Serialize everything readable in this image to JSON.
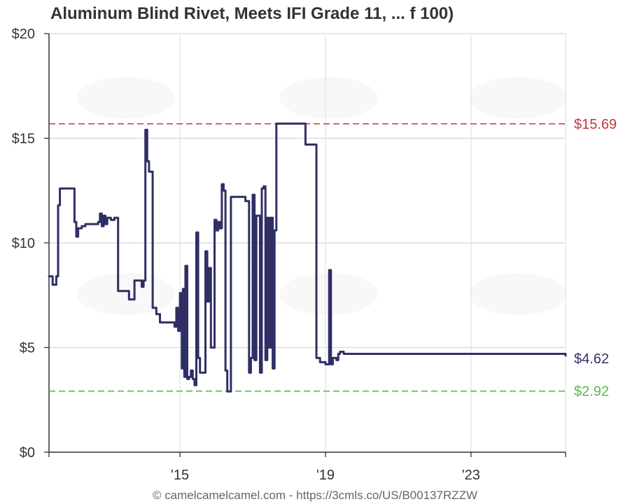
{
  "chart_data": {
    "type": "line",
    "title": "Aluminum Blind Rivet, Meets IFI Grade 11, ... f 100)",
    "footer": "© camelcamelcamel.com - https://3cmls.co/US/B00137RZZW",
    "y_ticks": [
      "$0",
      "$5",
      "$10",
      "$15",
      "$20"
    ],
    "y_tick_values": [
      0,
      5,
      10,
      15,
      20
    ],
    "x_ticks": [
      "'15",
      "'19",
      "'23"
    ],
    "x_tick_values": [
      2015.0,
      2019.0,
      2023.0
    ],
    "xlim": [
      2011.4,
      2025.6
    ],
    "ylim": [
      0,
      20
    ],
    "grid": true,
    "reference_lines": [
      {
        "label": "$15.69",
        "value": 15.69,
        "color": "#c0393b",
        "style": "dashed"
      },
      {
        "label": "$2.92",
        "value": 2.92,
        "color": "#59b84d",
        "style": "dashed"
      }
    ],
    "current_label": {
      "label": "$4.62",
      "value": 4.62,
      "color": "#2f2f66"
    },
    "series": [
      {
        "color": "#2f2f66",
        "points": [
          [
            2011.4,
            8.4
          ],
          [
            2011.5,
            8.0
          ],
          [
            2011.6,
            8.4
          ],
          [
            2011.65,
            11.8
          ],
          [
            2011.7,
            12.6
          ],
          [
            2012.05,
            12.6
          ],
          [
            2012.1,
            11.0
          ],
          [
            2012.15,
            10.3
          ],
          [
            2012.2,
            10.7
          ],
          [
            2012.3,
            10.8
          ],
          [
            2012.4,
            10.9
          ],
          [
            2012.6,
            10.9
          ],
          [
            2012.75,
            11.0
          ],
          [
            2012.8,
            11.4
          ],
          [
            2012.85,
            10.8
          ],
          [
            2012.9,
            11.3
          ],
          [
            2012.95,
            10.9
          ],
          [
            2013.0,
            11.2
          ],
          [
            2013.1,
            11.1
          ],
          [
            2013.2,
            11.2
          ],
          [
            2013.25,
            11.2
          ],
          [
            2013.3,
            7.7
          ],
          [
            2013.55,
            7.7
          ],
          [
            2013.6,
            7.3
          ],
          [
            2013.7,
            7.3
          ],
          [
            2013.75,
            8.2
          ],
          [
            2013.9,
            8.2
          ],
          [
            2013.95,
            7.9
          ],
          [
            2014.0,
            8.2
          ],
          [
            2014.05,
            15.4
          ],
          [
            2014.1,
            13.9
          ],
          [
            2014.15,
            13.4
          ],
          [
            2014.2,
            13.4
          ],
          [
            2014.25,
            6.9
          ],
          [
            2014.35,
            6.6
          ],
          [
            2014.45,
            6.2
          ],
          [
            2014.8,
            6.2
          ],
          [
            2014.85,
            6.0
          ],
          [
            2014.9,
            6.9
          ],
          [
            2014.95,
            5.8
          ],
          [
            2015.0,
            7.6
          ],
          [
            2015.05,
            4.0
          ],
          [
            2015.08,
            7.8
          ],
          [
            2015.12,
            3.6
          ],
          [
            2015.15,
            8.9
          ],
          [
            2015.2,
            3.5
          ],
          [
            2015.25,
            3.6
          ],
          [
            2015.3,
            3.9
          ],
          [
            2015.35,
            3.5
          ],
          [
            2015.4,
            3.2
          ],
          [
            2015.45,
            10.5
          ],
          [
            2015.5,
            4.5
          ],
          [
            2015.55,
            3.8
          ],
          [
            2015.65,
            3.8
          ],
          [
            2015.7,
            9.6
          ],
          [
            2015.75,
            7.2
          ],
          [
            2015.8,
            8.8
          ],
          [
            2015.85,
            5.0
          ],
          [
            2015.9,
            5.0
          ],
          [
            2015.95,
            11.1
          ],
          [
            2016.0,
            10.6
          ],
          [
            2016.05,
            11.0
          ],
          [
            2016.1,
            10.7
          ],
          [
            2016.15,
            12.8
          ],
          [
            2016.2,
            12.5
          ],
          [
            2016.25,
            3.9
          ],
          [
            2016.3,
            2.9
          ],
          [
            2016.35,
            2.9
          ],
          [
            2016.4,
            12.2
          ],
          [
            2016.75,
            12.2
          ],
          [
            2016.8,
            12.0
          ],
          [
            2016.85,
            12.0
          ],
          [
            2016.9,
            3.8
          ],
          [
            2016.95,
            4.5
          ],
          [
            2017.0,
            12.3
          ],
          [
            2017.05,
            4.4
          ],
          [
            2017.1,
            11.3
          ],
          [
            2017.15,
            11.3
          ],
          [
            2017.2,
            3.8
          ],
          [
            2017.25,
            12.6
          ],
          [
            2017.3,
            12.7
          ],
          [
            2017.35,
            4.4
          ],
          [
            2017.4,
            11.2
          ],
          [
            2017.45,
            5.0
          ],
          [
            2017.5,
            11.2
          ],
          [
            2017.55,
            4.0
          ],
          [
            2017.6,
            10.6
          ],
          [
            2017.65,
            15.7
          ],
          [
            2017.9,
            15.7
          ],
          [
            2018.4,
            15.7
          ],
          [
            2018.45,
            14.7
          ],
          [
            2018.7,
            14.7
          ],
          [
            2018.75,
            4.5
          ],
          [
            2018.85,
            4.3
          ],
          [
            2019.0,
            4.2
          ],
          [
            2019.1,
            8.7
          ],
          [
            2019.15,
            4.2
          ],
          [
            2019.2,
            4.5
          ],
          [
            2019.3,
            4.4
          ],
          [
            2019.35,
            4.7
          ],
          [
            2019.4,
            4.8
          ],
          [
            2019.5,
            4.7
          ],
          [
            2019.6,
            4.7
          ],
          [
            2025.6,
            4.62
          ]
        ]
      }
    ]
  }
}
